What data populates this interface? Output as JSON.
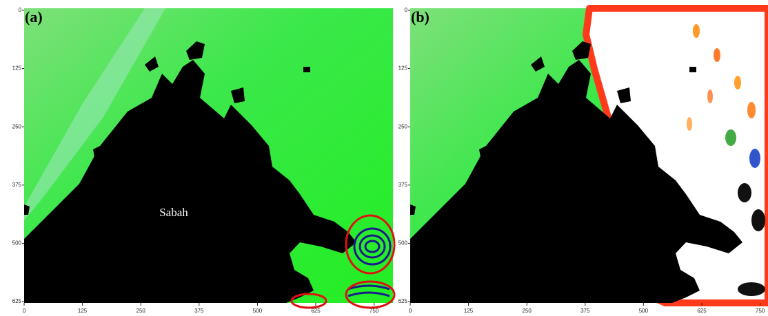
{
  "panels": [
    {
      "label": "(a)",
      "annotation": "Sabah",
      "xticks": [
        0,
        125,
        250,
        375,
        500,
        625,
        750
      ],
      "yticks": [
        0,
        125,
        250,
        375,
        500,
        625
      ]
    },
    {
      "label": "(b)",
      "xticks": [
        0,
        125,
        250,
        375,
        500,
        625,
        750
      ],
      "yticks": [
        0,
        125,
        250,
        375,
        500,
        625
      ]
    }
  ]
}
